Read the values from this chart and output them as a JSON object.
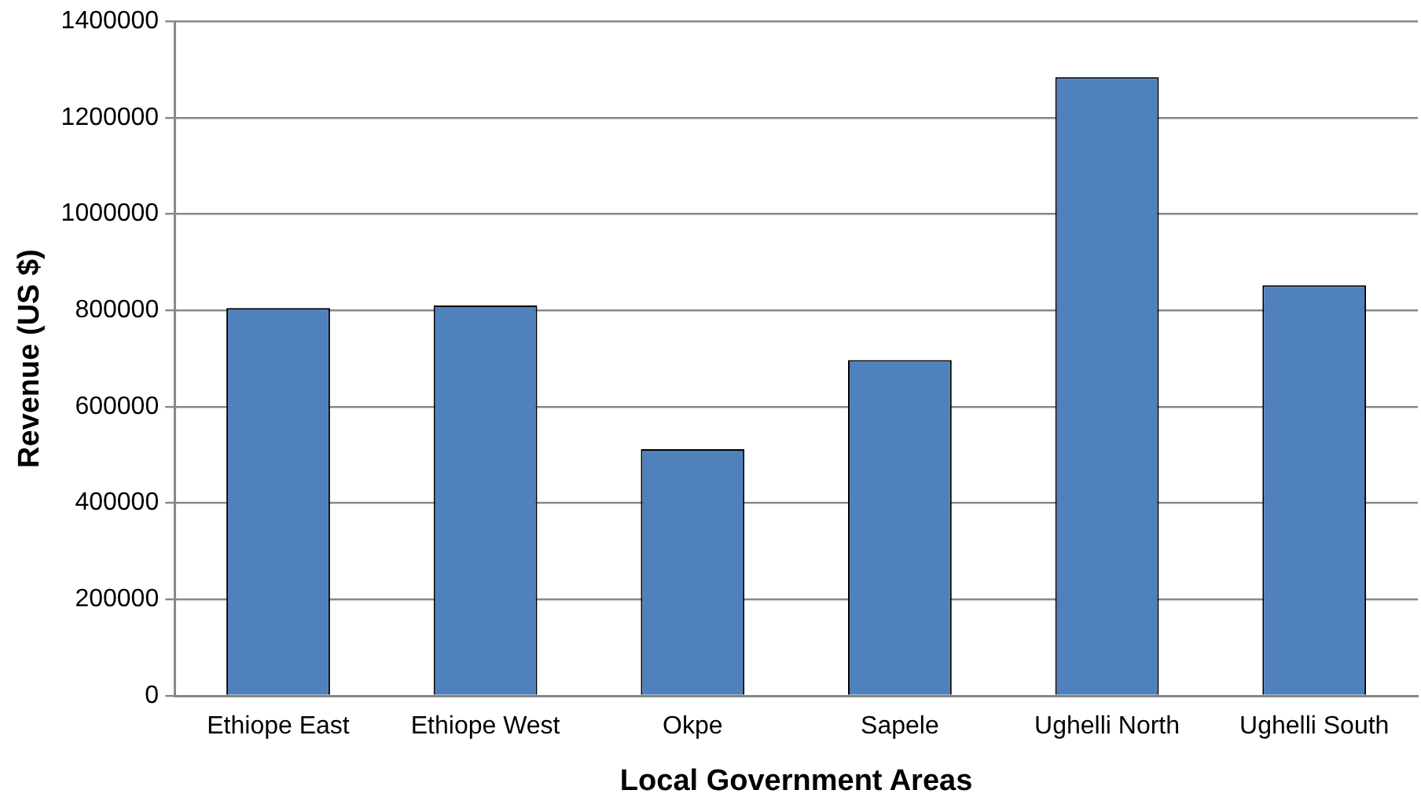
{
  "chart_data": {
    "type": "bar",
    "xlabel": "Local Government Areas",
    "ylabel": "Revenue (US $)",
    "categories": [
      "Ethiope East",
      "Ethiope West",
      "Okpe",
      "Sapele",
      "Ughelli North",
      "Ughelli South"
    ],
    "series": [
      {
        "color": "#4f81bd",
        "values": [
          805000,
          810000,
          512000,
          697000,
          1284000,
          852000
        ]
      }
    ],
    "ylim": [
      0,
      1400000
    ],
    "yticks": [
      0,
      200000,
      400000,
      600000,
      800000,
      1000000,
      1200000,
      1400000
    ],
    "grid": "y",
    "legend": false
  }
}
